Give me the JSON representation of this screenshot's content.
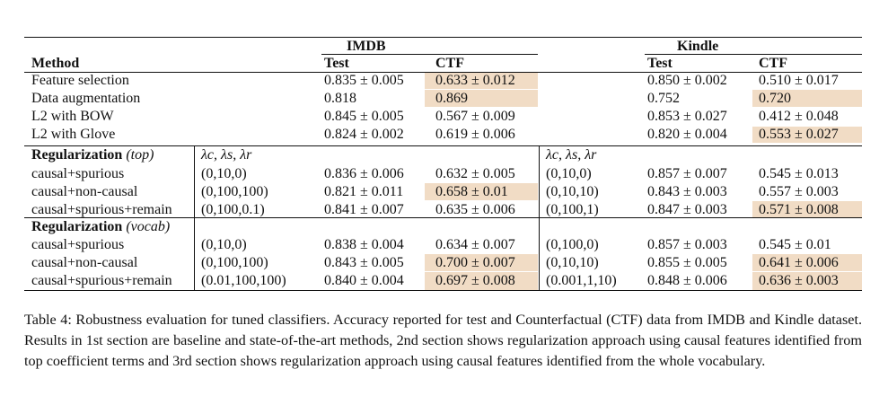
{
  "header": {
    "datasets": [
      "IMDB",
      "Kindle"
    ],
    "method_label": "Method",
    "test_label": "Test",
    "ctf_label": "CTF"
  },
  "sections": [
    {
      "title": "",
      "title_note": "",
      "param_header": "",
      "rows": [
        {
          "method": "Feature selection",
          "imdb_param": "",
          "imdb_test": "0.835 ± 0.005",
          "imdb_ctf": "0.633 ± 0.012",
          "kindle_param": "",
          "kindle_test": "0.850 ± 0.002",
          "kindle_ctf": "0.510 ± 0.017"
        },
        {
          "method": "Data augmentation",
          "imdb_param": "",
          "imdb_test": "0.818",
          "imdb_ctf": "0.869",
          "kindle_param": "",
          "kindle_test": "0.752",
          "kindle_ctf": "0.720"
        },
        {
          "method": "L2 with BOW",
          "imdb_param": "",
          "imdb_test": "0.845 ± 0.005",
          "imdb_ctf": "0.567 ± 0.009",
          "kindle_param": "",
          "kindle_test": "0.853 ± 0.027",
          "kindle_ctf": "0.412 ± 0.048"
        },
        {
          "method": "L2 with Glove",
          "imdb_param": "",
          "imdb_test": "0.824 ± 0.002",
          "imdb_ctf": "0.619 ± 0.006",
          "kindle_param": "",
          "kindle_test": "0.820 ± 0.004",
          "kindle_ctf": "0.553 ± 0.027"
        }
      ]
    },
    {
      "title": "Regularization",
      "title_note": "(top)",
      "param_header": "λc, λs, λr",
      "rows": [
        {
          "method": "causal+spurious",
          "imdb_param": "(0,10,0)",
          "imdb_test": "0.836 ± 0.006",
          "imdb_ctf": "0.632 ± 0.005",
          "kindle_param": "(0,10,0)",
          "kindle_test": "0.857 ± 0.007",
          "kindle_ctf": "0.545 ± 0.013"
        },
        {
          "method": "causal+non-causal",
          "imdb_param": "(0,100,100)",
          "imdb_test": "0.821 ± 0.011",
          "imdb_ctf": "0.658 ± 0.01",
          "kindle_param": "(0,10,10)",
          "kindle_test": "0.843 ± 0.003",
          "kindle_ctf": "0.557 ± 0.003"
        },
        {
          "method": "causal+spurious+remain",
          "imdb_param": "(0,100,0.1)",
          "imdb_test": "0.841 ± 0.007",
          "imdb_ctf": "0.635 ± 0.006",
          "kindle_param": "(0,100,1)",
          "kindle_test": "0.847 ± 0.003",
          "kindle_ctf": "0.571 ± 0.008"
        }
      ]
    },
    {
      "title": "Regularization",
      "title_note": "(vocab)",
      "param_header": "",
      "rows": [
        {
          "method": "causal+spurious",
          "imdb_param": "(0,10,0)",
          "imdb_test": "0.838 ± 0.004",
          "imdb_ctf": "0.634 ± 0.007",
          "kindle_param": "(0,100,0)",
          "kindle_test": "0.857 ± 0.003",
          "kindle_ctf": "0.545 ± 0.01"
        },
        {
          "method": "causal+non-causal",
          "imdb_param": "(0,100,100)",
          "imdb_test": "0.843 ± 0.005",
          "imdb_ctf": "0.700 ± 0.007",
          "kindle_param": "(0,10,10)",
          "kindle_test": "0.855 ± 0.005",
          "kindle_ctf": "0.641 ± 0.006"
        },
        {
          "method": "causal+spurious+remain",
          "imdb_param": "(0.01,100,100)",
          "imdb_test": "0.840 ± 0.004",
          "imdb_ctf": "0.697 ± 0.008",
          "kindle_param": "(0.001,1,10)",
          "kindle_test": "0.848 ± 0.006",
          "kindle_ctf": "0.636 ± 0.003"
        }
      ]
    }
  ],
  "highlight_color": "#f1dcc5",
  "caption": "Table 4: Robustness evaluation for tuned classifiers. Accuracy reported for test and Counterfactual (CTF) data from IMDB and Kindle dataset. Results in 1st section are baseline and state-of-the-art methods, 2nd section shows regularization approach using causal features identified from top coefficient terms and 3rd section shows regularization approach using causal features identified from the whole vocabulary."
}
